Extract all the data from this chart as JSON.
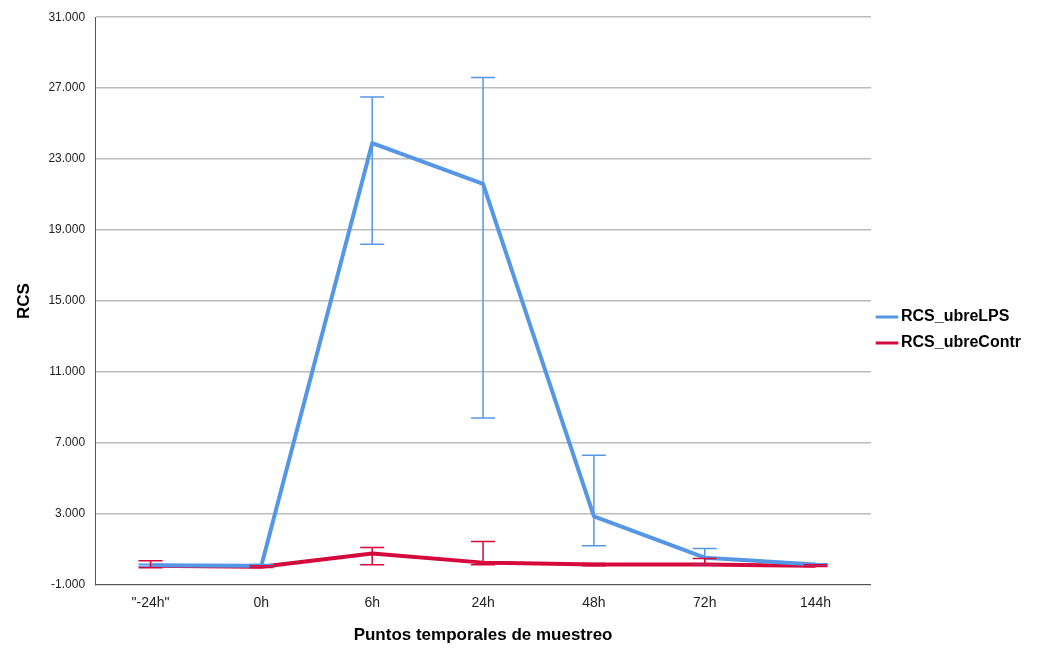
{
  "chart_data": {
    "type": "line",
    "xlabel": "Puntos temporales de muestreo",
    "ylabel": "RCS",
    "categories": [
      "\"-24h\"",
      "0h",
      "6h",
      "24h",
      "48h",
      "72h",
      "144h"
    ],
    "series": [
      {
        "name": "RCS_ubreLPS",
        "color": "#5597e5",
        "values": [
          100,
          80,
          23900,
          21600,
          2860,
          530,
          140
        ],
        "errors": [
          [
            40,
            160
          ],
          [
            20,
            140
          ],
          [
            18200,
            26500
          ],
          [
            8400,
            27600
          ],
          [
            1200,
            6300
          ],
          [
            190,
            1050
          ],
          [
            90,
            190
          ]
        ]
      },
      {
        "name": "RCS_ubreContr",
        "color": "#d5093c",
        "values": [
          80,
          20,
          760,
          250,
          140,
          140,
          80
        ],
        "errors": [
          [
            -40,
            360
          ],
          [
            -20,
            80
          ],
          [
            130,
            1100
          ],
          [
            130,
            1440
          ],
          [
            80,
            200
          ],
          [
            190,
            480
          ],
          [
            30,
            130
          ]
        ]
      }
    ],
    "ylim": [
      -1000,
      31000
    ],
    "yticks": [
      {
        "value": -1000,
        "label": "-1.000"
      },
      {
        "value": 3000,
        "label": "3.000"
      },
      {
        "value": 7000,
        "label": "7.000"
      },
      {
        "value": 11000,
        "label": "11.000"
      },
      {
        "value": 15000,
        "label": "15.000"
      },
      {
        "value": 19000,
        "label": "19.000"
      },
      {
        "value": 23000,
        "label": "23.000"
      },
      {
        "value": 27000,
        "label": "27.000"
      },
      {
        "value": 31000,
        "label": "31.000"
      }
    ],
    "grid": "y",
    "legend": "right",
    "marker": "none",
    "line_style": "solid"
  }
}
